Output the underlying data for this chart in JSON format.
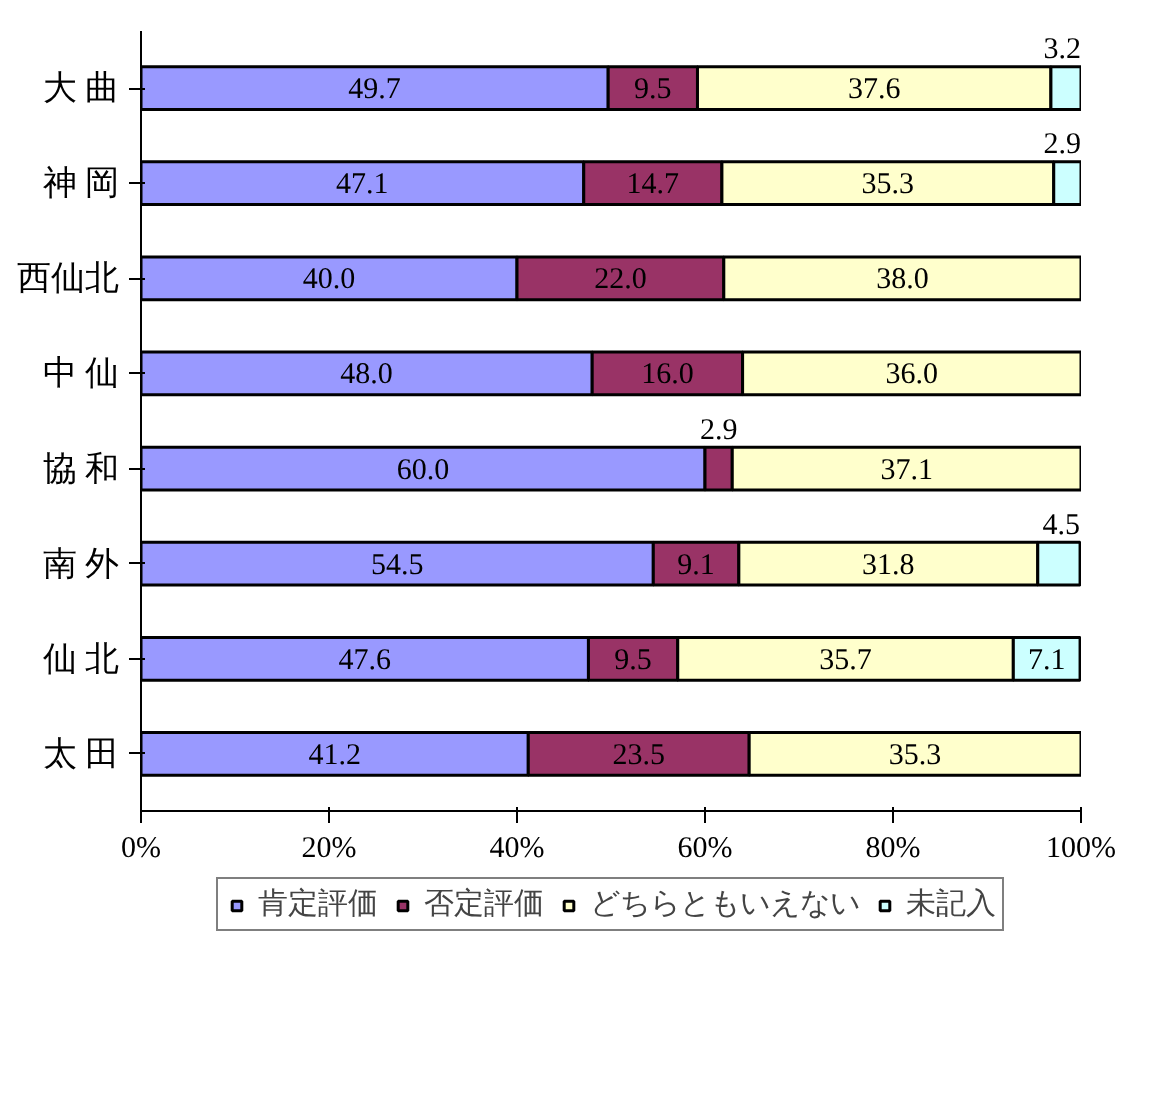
{
  "chart_data": {
    "type": "bar",
    "orientation": "horizontal",
    "stacked": true,
    "categories": [
      "大 曲",
      "神 岡",
      "西仙北",
      "中 仙",
      "協 和",
      "南 外",
      "仙 北",
      "太 田"
    ],
    "series": [
      {
        "name": "肯定評価",
        "color": "#9999ff",
        "values": [
          49.7,
          47.1,
          40.0,
          48.0,
          60.0,
          54.5,
          47.6,
          41.2
        ],
        "value_labels": [
          "49.7",
          "47.1",
          "40.0",
          "48.0",
          "60.0",
          "54.5",
          "47.6",
          "41.2"
        ]
      },
      {
        "name": "否定評価",
        "color": "#993366",
        "values": [
          9.5,
          14.7,
          22.0,
          16.0,
          2.9,
          9.1,
          9.5,
          23.5
        ],
        "value_labels": [
          "9.5",
          "14.7",
          "22.0",
          "16.0",
          "2.9",
          "9.1",
          "9.5",
          "23.5"
        ]
      },
      {
        "name": "どちらともいえない",
        "color": "#ffffcc",
        "values": [
          37.6,
          35.3,
          38.0,
          36.0,
          37.1,
          31.8,
          35.7,
          35.3
        ],
        "value_labels": [
          "37.6",
          "35.3",
          "38.0",
          "36.0",
          "37.1",
          "31.8",
          "35.7",
          "35.3"
        ]
      },
      {
        "name": "未記入",
        "color": "#ccffff",
        "values": [
          3.2,
          2.9,
          null,
          null,
          null,
          4.5,
          7.1,
          null
        ],
        "value_labels": [
          "3.2",
          "2.9",
          null,
          null,
          null,
          "4.5",
          "7.1",
          null
        ]
      }
    ],
    "xlim": [
      0,
      100
    ],
    "xticks": [
      {
        "value": 0,
        "label": "0%"
      },
      {
        "value": 20,
        "label": "20%"
      },
      {
        "value": 40,
        "label": "40%"
      },
      {
        "value": 60,
        "label": "60%"
      },
      {
        "value": 80,
        "label": "80%"
      },
      {
        "value": 100,
        "label": "100%"
      }
    ],
    "legend": "bottom",
    "grid": false
  }
}
